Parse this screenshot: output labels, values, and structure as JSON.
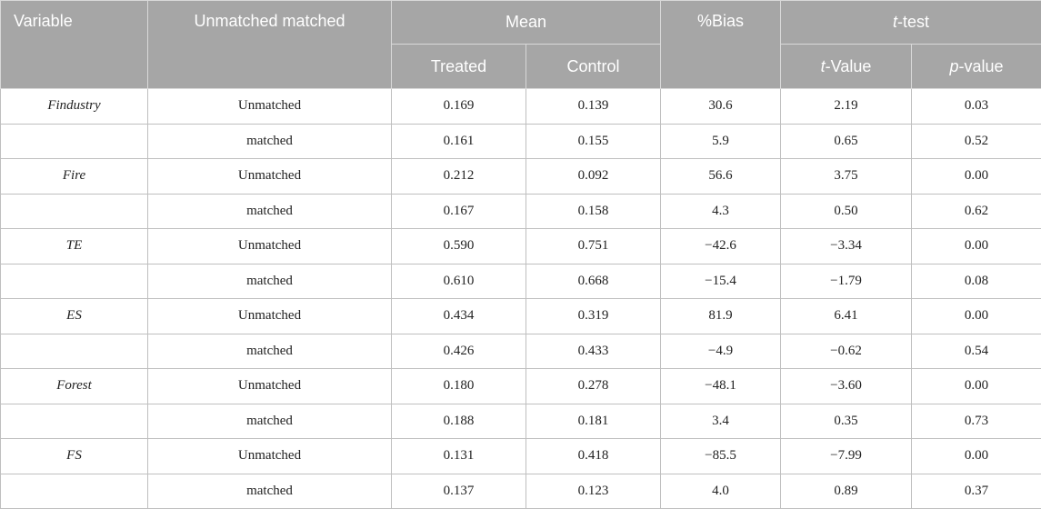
{
  "header": {
    "variable": "Variable",
    "unmatched_matched": "Unmatched matched",
    "mean": "Mean",
    "treated": "Treated",
    "control": "Control",
    "bias": "%Bias",
    "ttest_t": "t",
    "ttest_rest": "-test",
    "tvalue_t": "t",
    "tvalue_rest": "-Value",
    "pvalue_p": "p",
    "pvalue_rest": "-value"
  },
  "rows": [
    {
      "variable": "Findustry",
      "sample": "Unmatched",
      "treated": "0.169",
      "control": "0.139",
      "bias": "30.6",
      "t": "2.19",
      "p": "0.03"
    },
    {
      "variable": "",
      "sample": "matched",
      "treated": "0.161",
      "control": "0.155",
      "bias": "5.9",
      "t": "0.65",
      "p": "0.52"
    },
    {
      "variable": "Fire",
      "sample": "Unmatched",
      "treated": "0.212",
      "control": "0.092",
      "bias": "56.6",
      "t": "3.75",
      "p": "0.00"
    },
    {
      "variable": "",
      "sample": "matched",
      "treated": "0.167",
      "control": "0.158",
      "bias": "4.3",
      "t": "0.50",
      "p": "0.62"
    },
    {
      "variable": "TE",
      "sample": "Unmatched",
      "treated": "0.590",
      "control": "0.751",
      "bias": "−42.6",
      "t": "−3.34",
      "p": "0.00"
    },
    {
      "variable": "",
      "sample": "matched",
      "treated": "0.610",
      "control": "0.668",
      "bias": "−15.4",
      "t": "−1.79",
      "p": "0.08"
    },
    {
      "variable": "ES",
      "sample": "Unmatched",
      "treated": "0.434",
      "control": "0.319",
      "bias": "81.9",
      "t": "6.41",
      "p": "0.00"
    },
    {
      "variable": "",
      "sample": "matched",
      "treated": "0.426",
      "control": "0.433",
      "bias": "−4.9",
      "t": "−0.62",
      "p": "0.54"
    },
    {
      "variable": "Forest",
      "sample": "Unmatched",
      "treated": "0.180",
      "control": "0.278",
      "bias": "−48.1",
      "t": "−3.60",
      "p": "0.00"
    },
    {
      "variable": "",
      "sample": "matched",
      "treated": "0.188",
      "control": "0.181",
      "bias": "3.4",
      "t": "0.35",
      "p": "0.73"
    },
    {
      "variable": "FS",
      "sample": "Unmatched",
      "treated": "0.131",
      "control": "0.418",
      "bias": "−85.5",
      "t": "−7.99",
      "p": "0.00"
    },
    {
      "variable": "",
      "sample": "matched",
      "treated": "0.137",
      "control": "0.123",
      "bias": "4.0",
      "t": "0.89",
      "p": "0.37"
    }
  ]
}
